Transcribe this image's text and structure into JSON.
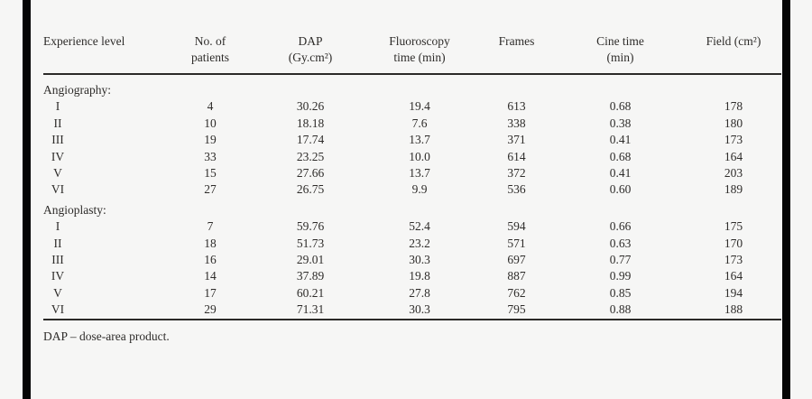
{
  "page": {
    "background": "#f6f6f5",
    "text_color": "#2e2c2a",
    "rule_color": "#2b2a28",
    "edge_bar_color": "#050505"
  },
  "table": {
    "header": {
      "columns": [
        {
          "lines": [
            "Experience level"
          ]
        },
        {
          "lines": [
            "No. of",
            "patients"
          ]
        },
        {
          "lines": [
            "DAP",
            "(Gy.cm²)"
          ]
        },
        {
          "lines": [
            "Fluoroscopy",
            "time (min)"
          ]
        },
        {
          "lines": [
            "Frames"
          ]
        },
        {
          "lines": [
            "Cine time",
            "(min)"
          ]
        },
        {
          "lines": [
            "Field (cm²)"
          ]
        }
      ]
    },
    "sections": [
      {
        "label": "Angiography:",
        "rows": [
          [
            "I",
            "4",
            "30.26",
            "19.4",
            "613",
            "0.68",
            "178"
          ],
          [
            "II",
            "10",
            "18.18",
            "7.6",
            "338",
            "0.38",
            "180"
          ],
          [
            "III",
            "19",
            "17.74",
            "13.7",
            "371",
            "0.41",
            "173"
          ],
          [
            "IV",
            "33",
            "23.25",
            "10.0",
            "614",
            "0.68",
            "164"
          ],
          [
            "V",
            "15",
            "27.66",
            "13.7",
            "372",
            "0.41",
            "203"
          ],
          [
            "VI",
            "27",
            "26.75",
            "9.9",
            "536",
            "0.60",
            "189"
          ]
        ]
      },
      {
        "label": "Angioplasty:",
        "rows": [
          [
            "I",
            "7",
            "59.76",
            "52.4",
            "594",
            "0.66",
            "175"
          ],
          [
            "II",
            "18",
            "51.73",
            "23.2",
            "571",
            "0.63",
            "170"
          ],
          [
            "III",
            "16",
            "29.01",
            "30.3",
            "697",
            "0.77",
            "173"
          ],
          [
            "IV",
            "14",
            "37.89",
            "19.8",
            "887",
            "0.99",
            "164"
          ],
          [
            "V",
            "17",
            "60.21",
            "27.8",
            "762",
            "0.85",
            "194"
          ],
          [
            "VI",
            "29",
            "71.31",
            "30.3",
            "795",
            "0.88",
            "188"
          ]
        ]
      }
    ],
    "footnote": "DAP – dose-area product."
  }
}
